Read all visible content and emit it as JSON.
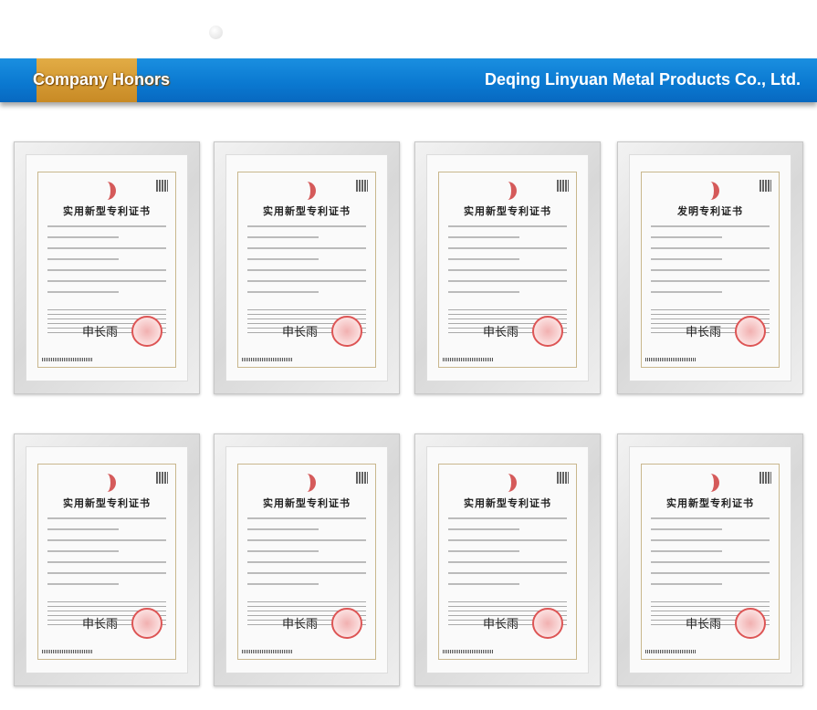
{
  "header": {
    "section_title": "Company Honors",
    "company_name": "Deqing Linyuan Metal Products Co., Ltd.",
    "banner_color": "#0a78d0",
    "tab_color": "#d69a32"
  },
  "certificates": [
    {
      "title": "实用新型专利证书",
      "signature": "申长雨"
    },
    {
      "title": "实用新型专利证书",
      "signature": "申长雨"
    },
    {
      "title": "实用新型专利证书",
      "signature": "申长雨"
    },
    {
      "title": "发明专利证书",
      "signature": "申长雨"
    },
    {
      "title": "实用新型专利证书",
      "signature": "申长雨"
    },
    {
      "title": "实用新型专利证书",
      "signature": "申长雨"
    },
    {
      "title": "实用新型专利证书",
      "signature": "申长雨"
    },
    {
      "title": "实用新型专利证书",
      "signature": "申长雨"
    }
  ]
}
